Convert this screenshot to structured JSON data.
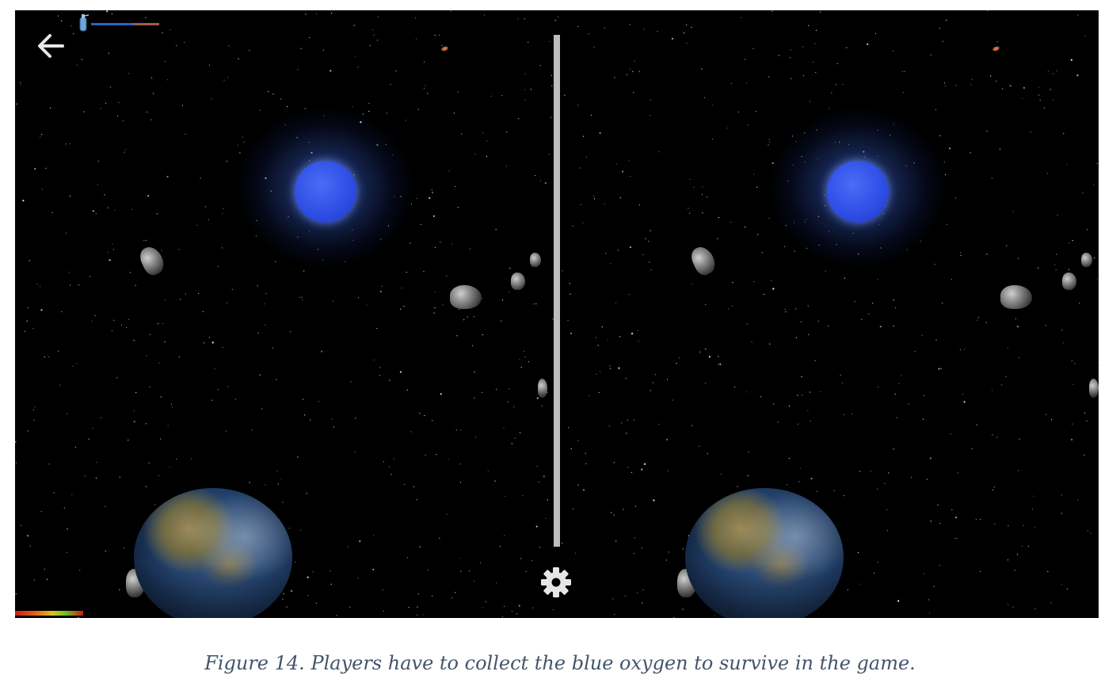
{
  "game": {
    "view_mode": "stereoscopic VR split view",
    "back_icon": "arrow-left-icon",
    "settings_icon": "gear-icon",
    "oxygen_icon": "oxygen-tank-icon",
    "oxygen_level": 0.62,
    "colors": {
      "background": "#000000",
      "oxygen_orb": "#2f4fe6",
      "divider": "#bdbdbd",
      "ui_icons": "#e6e6e6"
    }
  },
  "caption": {
    "text": "Figure 14. Players have to collect the blue oxygen to survive in the game."
  }
}
